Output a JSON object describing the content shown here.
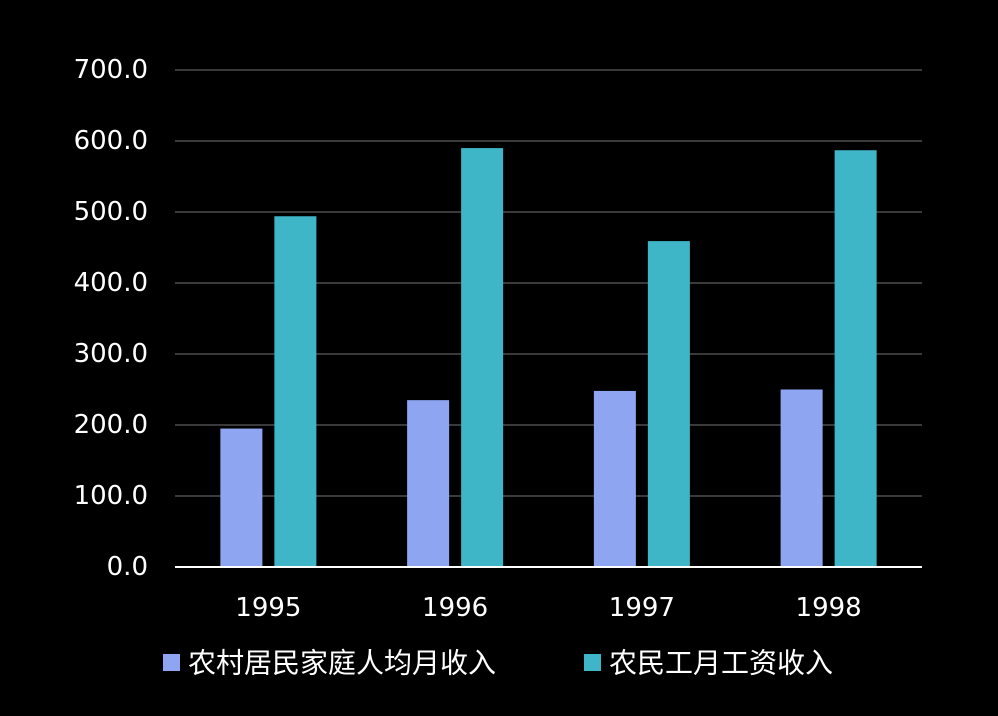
{
  "chart_data": {
    "type": "bar",
    "title": "",
    "xlabel": "",
    "ylabel": "",
    "categories": [
      "1995",
      "1996",
      "1997",
      "1998"
    ],
    "series": [
      {
        "name": "农村居民家庭人均月收入",
        "color": "#8EA6F2",
        "values": [
          195,
          235,
          248,
          250
        ]
      },
      {
        "name": "农民工月工资收入",
        "color": "#3FB6C8",
        "values": [
          494,
          590,
          459,
          587
        ]
      }
    ],
    "ylim": [
      0,
      700
    ],
    "yticks": [
      "0.0",
      "100.0",
      "200.0",
      "300.0",
      "400.0",
      "500.0",
      "600.0",
      "700.0"
    ],
    "grid": true,
    "legend_position": "bottom",
    "background_color": "#000000",
    "gridline_color": "#3a3a3a",
    "axis_color": "#ffffff"
  }
}
